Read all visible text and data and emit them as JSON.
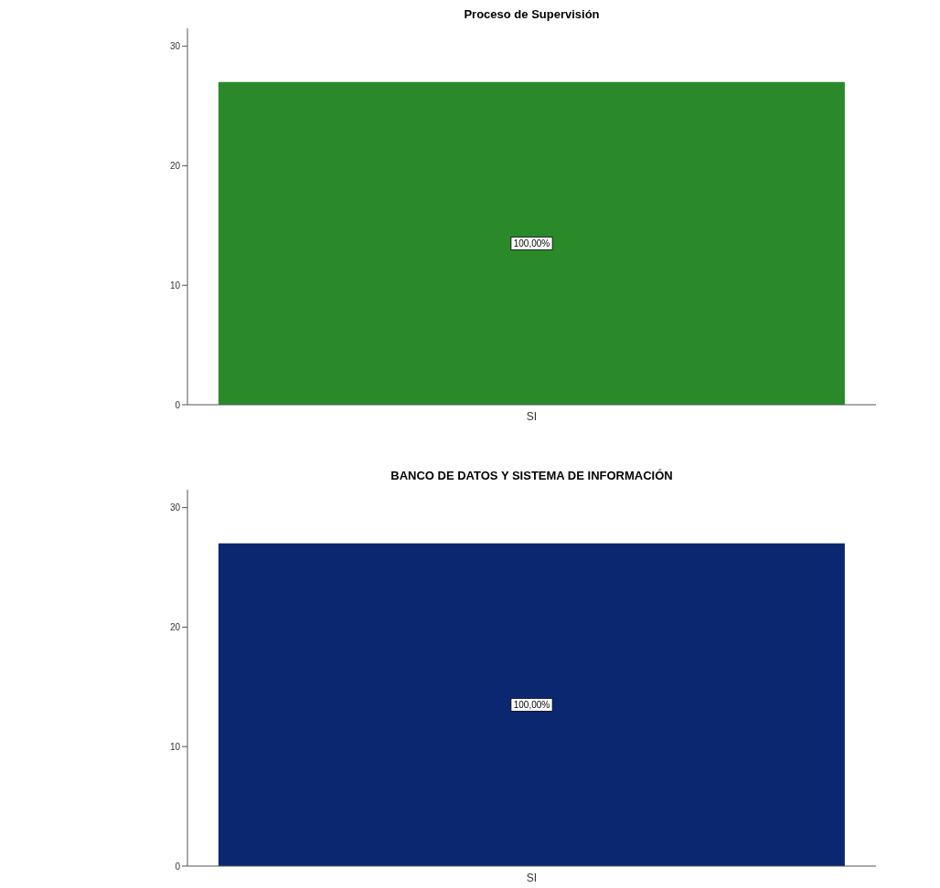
{
  "chart_data": [
    {
      "type": "bar",
      "title": "Proceso de Supervisión",
      "categories": [
        "SI"
      ],
      "values": [
        27
      ],
      "color": "#2a8a2a",
      "annotations": [
        "100,00%"
      ],
      "ylim": [
        0,
        31.5
      ],
      "yticks": [
        0,
        10,
        20,
        30
      ],
      "grid": false,
      "legend": false
    },
    {
      "type": "bar",
      "title": "BANCO DE DATOS Y SISTEMA DE INFORMACIÓN",
      "categories": [
        "SI"
      ],
      "values": [
        27
      ],
      "color": "#0b2770",
      "annotations": [
        "100,00%"
      ],
      "ylim": [
        0,
        31.5
      ],
      "yticks": [
        0,
        10,
        20,
        30
      ],
      "grid": false,
      "legend": false
    }
  ]
}
